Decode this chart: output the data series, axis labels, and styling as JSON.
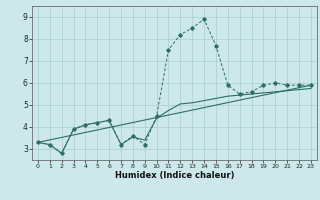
{
  "title": "",
  "xlabel": "Humidex (Indice chaleur)",
  "bg_color": "#cce8ea",
  "grid_color": "#aacdd0",
  "line_color": "#2d6e65",
  "x_data": [
    0,
    1,
    2,
    3,
    4,
    5,
    6,
    7,
    8,
    9,
    10,
    11,
    12,
    13,
    14,
    15,
    16,
    17,
    18,
    19,
    20,
    21,
    22,
    23
  ],
  "curve1": [
    3.3,
    3.2,
    2.8,
    3.9,
    4.1,
    4.2,
    4.3,
    3.2,
    3.6,
    3.2,
    4.5,
    7.5,
    8.2,
    8.5,
    8.9,
    7.7,
    5.9,
    5.5,
    5.6,
    5.9,
    6.0,
    5.9,
    5.9,
    5.9
  ],
  "curve2_x": [
    0,
    23
  ],
  "curve2_y": [
    3.3,
    5.9
  ],
  "curve3": [
    3.3,
    3.2,
    2.8,
    3.9,
    4.1,
    4.2,
    4.3,
    3.2,
    3.55,
    3.4,
    4.4,
    4.75,
    5.05,
    5.1,
    5.2,
    5.3,
    5.4,
    5.45,
    5.5,
    5.55,
    5.6,
    5.65,
    5.7,
    5.75
  ],
  "ylim": [
    2.5,
    9.5
  ],
  "xlim": [
    -0.5,
    23.5
  ],
  "yticks": [
    3,
    4,
    5,
    6,
    7,
    8,
    9
  ],
  "xticks": [
    0,
    1,
    2,
    3,
    4,
    5,
    6,
    7,
    8,
    9,
    10,
    11,
    12,
    13,
    14,
    15,
    16,
    17,
    18,
    19,
    20,
    21,
    22,
    23
  ]
}
